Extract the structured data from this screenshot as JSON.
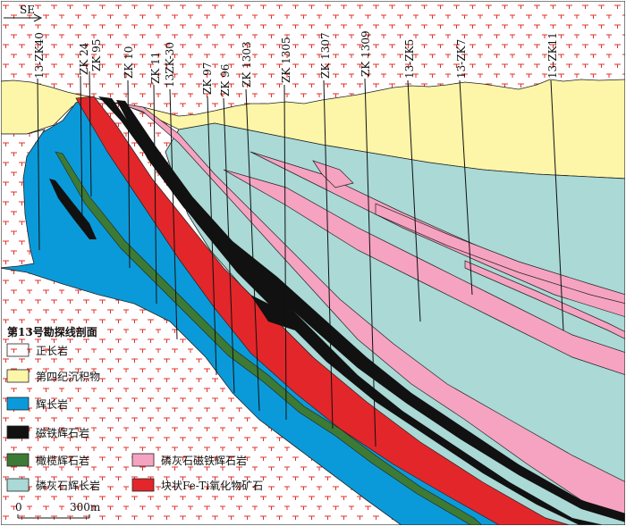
{
  "direction": "SE",
  "boreholes": [
    {
      "name": "13-ZK40"
    },
    {
      "name": "ZK 24"
    },
    {
      "name": "ZK 95"
    },
    {
      "name": "ZK 10"
    },
    {
      "name": "ZK 11"
    },
    {
      "name": "13ZK-30"
    },
    {
      "name": "ZK 97"
    },
    {
      "name": "ZK 96"
    },
    {
      "name": "ZK 1303"
    },
    {
      "name": "ZK 1305"
    },
    {
      "name": "ZK 1307"
    },
    {
      "name": "ZK 1309"
    },
    {
      "name": "13-ZK5"
    },
    {
      "name": "13-ZK7"
    },
    {
      "name": "13-ZK11"
    }
  ],
  "legend": {
    "title": "第13号勘探线剖面",
    "items": [
      {
        "label": "正长岩",
        "color": "#ffffff",
        "pattern": "syenite"
      },
      {
        "label": "第四纪沉积物",
        "color": "#fdf5a8"
      },
      {
        "label": "辉长岩",
        "color": "#0b9ad9"
      },
      {
        "label": "磁铁辉石岩",
        "color": "#111111"
      },
      {
        "label": "橄榄辉石岩",
        "color": "#3d7a35"
      },
      {
        "label": "磷灰石辉长岩",
        "color": "#aad9d6"
      },
      {
        "label": "磷灰石磁铁辉石岩",
        "color": "#f5a3c0"
      },
      {
        "label": "块状Fe-Ti氧化物矿石",
        "color": "#e3262a"
      }
    ]
  },
  "scale": {
    "start": "0",
    "end": "300m"
  }
}
